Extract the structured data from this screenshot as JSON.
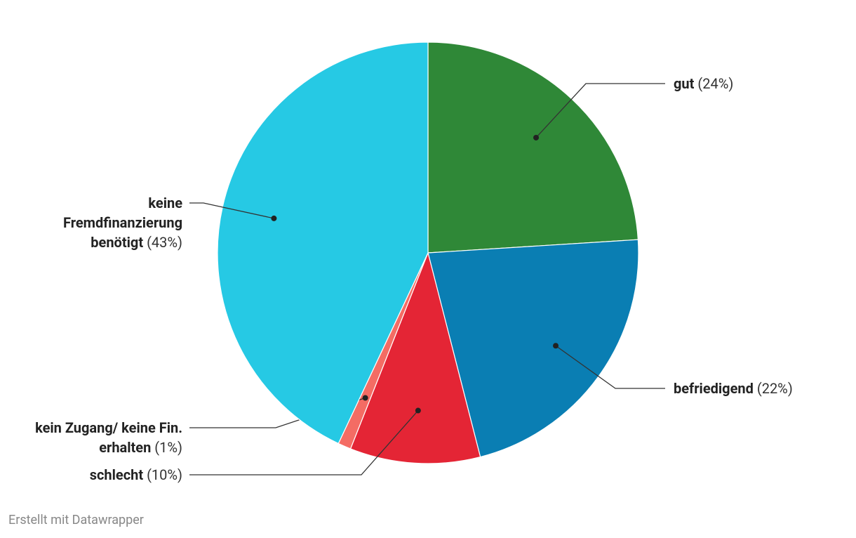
{
  "chart_data": {
    "type": "pie",
    "categories": [
      "gut",
      "befriedigend",
      "schlecht",
      "kein Zugang/ keine Fin. erhalten",
      "keine Fremdfinanzierung benötigt"
    ],
    "values": [
      24,
      22,
      10,
      1,
      43
    ],
    "value_labels": [
      "(24%)",
      "(22%)",
      "(10%)",
      "(1%)",
      "(43%)"
    ],
    "colors": [
      "#2f8837",
      "#0a7eb3",
      "#e42535",
      "#f46c64",
      "#26c9e4"
    ],
    "footer": "Erstellt mit Datawrapper"
  }
}
